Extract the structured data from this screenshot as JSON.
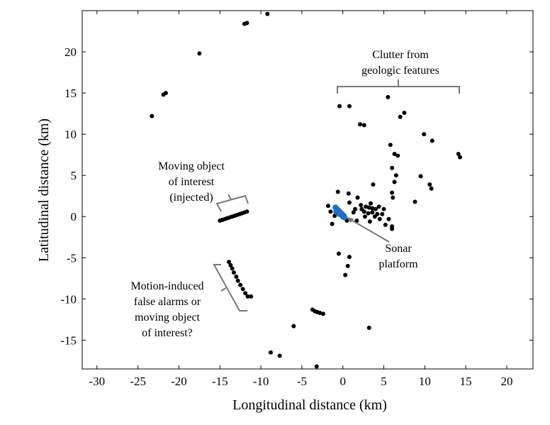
{
  "chart_data": {
    "type": "scatter",
    "title": "",
    "xlabel": "Longitudinal distance (km)",
    "ylabel": "Latitudinal distance (km)",
    "xlim": [
      -31.8,
      23.2
    ],
    "ylim": [
      -18.5,
      25
    ],
    "xticks": [
      -30,
      -25,
      -20,
      -15,
      -10,
      -5,
      0,
      5,
      10,
      15,
      20
    ],
    "yticks": [
      -15,
      -10,
      -5,
      0,
      5,
      10,
      15,
      20
    ],
    "grid": false,
    "box": true,
    "series": [
      {
        "color": "#000000",
        "points": [
          [
            -9.2,
            24.6
          ],
          [
            -12,
            23.4
          ],
          [
            -11.7,
            23.5
          ],
          [
            -17.5,
            19.8
          ],
          [
            -21.9,
            14.8
          ],
          [
            -21.6,
            15
          ],
          [
            -23.3,
            12.2
          ],
          [
            -0.4,
            13.4
          ],
          [
            0.8,
            13.4
          ],
          [
            5.5,
            14.5
          ],
          [
            7.5,
            12.6
          ],
          [
            7,
            12.1
          ],
          [
            2.1,
            11.2
          ],
          [
            2.6,
            11.1
          ],
          [
            9.9,
            10
          ],
          [
            10.9,
            9.2
          ],
          [
            5.8,
            8.7
          ],
          [
            6.3,
            7.6
          ],
          [
            6.7,
            7.4
          ],
          [
            14.1,
            7.6
          ],
          [
            14.3,
            7.2
          ],
          [
            6,
            5.9
          ],
          [
            6.5,
            5
          ],
          [
            6.3,
            4.2
          ],
          [
            9.5,
            4.9
          ],
          [
            10.6,
            3.9
          ],
          [
            10.8,
            3.4
          ],
          [
            3.7,
            3.9
          ],
          [
            6,
            2.9
          ],
          [
            6.1,
            2.3
          ],
          [
            8.8,
            1.8
          ],
          [
            -0.6,
            3
          ],
          [
            0.7,
            2.8
          ],
          [
            1.8,
            2.3
          ],
          [
            0.8,
            1.7
          ],
          [
            -1.8,
            1.3
          ],
          [
            -1.5,
            0.6
          ],
          [
            -1,
            0.1
          ],
          [
            0.2,
            -0.2
          ],
          [
            0.5,
            -0.5
          ],
          [
            -1.3,
            -0.9
          ],
          [
            2.2,
            1.4
          ],
          [
            2.8,
            1.2
          ],
          [
            3.2,
            1.1
          ],
          [
            3.6,
            1
          ],
          [
            4,
            0.9
          ],
          [
            4.4,
            1.2
          ],
          [
            2.6,
            0.6
          ],
          [
            3.1,
            0.4
          ],
          [
            3.6,
            0.5
          ],
          [
            2.3,
            0.9
          ],
          [
            4.2,
            0.3
          ],
          [
            5,
            0.9
          ],
          [
            5.6,
            -0.3
          ],
          [
            5.2,
            -1
          ],
          [
            4.5,
            -0.3
          ],
          [
            6,
            -1.2
          ],
          [
            6,
            -1.5
          ],
          [
            1.3,
            0.5
          ],
          [
            1.7,
            -0.5
          ],
          [
            2.7,
            0
          ],
          [
            3.3,
            -0.6
          ],
          [
            3.9,
            0
          ],
          [
            4.8,
            0.3
          ],
          [
            3.4,
            1.6
          ],
          [
            1.5,
            0.9
          ],
          [
            -0.5,
            -4.5
          ],
          [
            0.8,
            -4.9
          ],
          [
            0.6,
            -6
          ],
          [
            0.3,
            -7.1
          ],
          [
            -15,
            -0.5
          ],
          [
            -14.7,
            -0.4
          ],
          [
            -14.4,
            -0.3
          ],
          [
            -14.1,
            -0.2
          ],
          [
            -13.8,
            -0.1
          ],
          [
            -13.5,
            0
          ],
          [
            -13.2,
            0.1
          ],
          [
            -12.9,
            0.2
          ],
          [
            -12.6,
            0.3
          ],
          [
            -12.3,
            0.4
          ],
          [
            -12,
            0.5
          ],
          [
            -11.7,
            0.6
          ],
          [
            -13.9,
            -5.5
          ],
          [
            -13.7,
            -5.9
          ],
          [
            -13.5,
            -6.3
          ],
          [
            -13.3,
            -6.8
          ],
          [
            -13,
            -7.3
          ],
          [
            -12.8,
            -7.8
          ],
          [
            -12.5,
            -8.3
          ],
          [
            -12.2,
            -8.8
          ],
          [
            -11.9,
            -9.3
          ],
          [
            -11.6,
            -9.7
          ],
          [
            -11.2,
            -9.7
          ],
          [
            -3.7,
            -11.3
          ],
          [
            -3.4,
            -11.5
          ],
          [
            -3.1,
            -11.6
          ],
          [
            -2.8,
            -11.7
          ],
          [
            -2.4,
            -11.8
          ],
          [
            -6,
            -13.3
          ],
          [
            3.2,
            -13.5
          ],
          [
            -8.8,
            -16.5
          ],
          [
            -7.7,
            -16.9
          ],
          [
            -3.2,
            -18.2
          ]
        ]
      },
      {
        "color": "#1f6fc4",
        "points": [
          [
            -0.9,
            1.1
          ],
          [
            -0.7,
            0.9
          ],
          [
            -0.5,
            0.7
          ],
          [
            -0.3,
            0.5
          ],
          [
            -0.1,
            0.3
          ],
          [
            0.1,
            0.1
          ],
          [
            0.2,
            -0.1
          ],
          [
            -0.8,
            0.6
          ],
          [
            -0.4,
            0.3
          ],
          [
            0,
            0
          ]
        ]
      }
    ],
    "annotations": [
      {
        "lines": [
          "Clutter from",
          "geologic features"
        ]
      },
      {
        "lines": [
          "Moving object",
          "of interest",
          "(injected)"
        ]
      },
      {
        "lines": [
          "Motion-induced",
          "false alarms or",
          "moving object",
          "of interest?"
        ]
      },
      {
        "lines": [
          "Sonar",
          "platform"
        ]
      }
    ]
  }
}
